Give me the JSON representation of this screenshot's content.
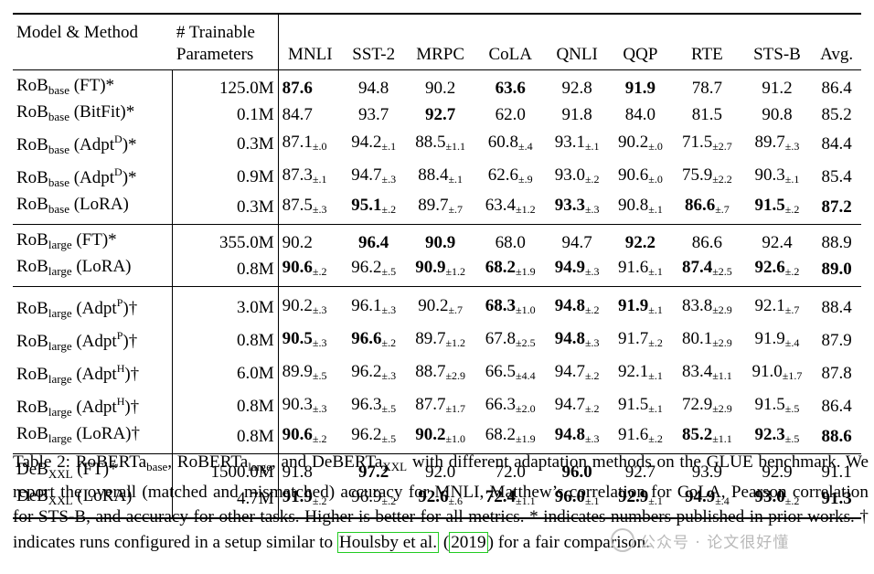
{
  "table": {
    "headers": {
      "model": "Model & Method",
      "params_line1": "# Trainable",
      "params_line2": "Parameters",
      "tasks": [
        "MNLI",
        "SST-2",
        "MRPC",
        "CoLA",
        "QNLI",
        "QQP",
        "RTE",
        "STS-B",
        "Avg."
      ]
    },
    "rows": [
      {
        "base": "RoB",
        "sub": "base",
        "sup": "",
        "method": "(FT)*",
        "params": "125.0M",
        "cells": [
          {
            "v": "87.6",
            "b": true
          },
          {
            "v": "94.8"
          },
          {
            "v": "90.2"
          },
          {
            "v": "63.6",
            "b": true
          },
          {
            "v": "92.8"
          },
          {
            "v": "91.9",
            "b": true
          },
          {
            "v": "78.7"
          },
          {
            "v": "91.2"
          },
          {
            "v": "86.4"
          }
        ]
      },
      {
        "base": "RoB",
        "sub": "base",
        "sup": "",
        "method": "(BitFit)*",
        "params": "0.1M",
        "cells": [
          {
            "v": "84.7"
          },
          {
            "v": "93.7"
          },
          {
            "v": "92.7",
            "b": true
          },
          {
            "v": "62.0"
          },
          {
            "v": "91.8"
          },
          {
            "v": "84.0"
          },
          {
            "v": "81.5"
          },
          {
            "v": "90.8"
          },
          {
            "v": "85.2"
          }
        ]
      },
      {
        "base": "RoB",
        "sub": "base",
        "sup": "D",
        "method": "(Adpt",
        "method_end": ")*",
        "params": "0.3M",
        "cells": [
          {
            "v": "87.1",
            "s": "±.0"
          },
          {
            "v": "94.2",
            "s": "±.1"
          },
          {
            "v": "88.5",
            "s": "±1.1"
          },
          {
            "v": "60.8",
            "s": "±.4"
          },
          {
            "v": "93.1",
            "s": "±.1"
          },
          {
            "v": "90.2",
            "s": "±.0"
          },
          {
            "v": "71.5",
            "s": "±2.7"
          },
          {
            "v": "89.7",
            "s": "±.3"
          },
          {
            "v": "84.4"
          }
        ]
      },
      {
        "base": "RoB",
        "sub": "base",
        "sup": "D",
        "method": "(Adpt",
        "method_end": ")*",
        "params": "0.9M",
        "cells": [
          {
            "v": "87.3",
            "s": "±.1"
          },
          {
            "v": "94.7",
            "s": "±.3"
          },
          {
            "v": "88.4",
            "s": "±.1"
          },
          {
            "v": "62.6",
            "s": "±.9"
          },
          {
            "v": "93.0",
            "s": "±.2"
          },
          {
            "v": "90.6",
            "s": "±.0"
          },
          {
            "v": "75.9",
            "s": "±2.2"
          },
          {
            "v": "90.3",
            "s": "±.1"
          },
          {
            "v": "85.4"
          }
        ]
      },
      {
        "base": "RoB",
        "sub": "base",
        "sup": "",
        "method": "(LoRA)",
        "params": "0.3M",
        "cells": [
          {
            "v": "87.5",
            "s": "±.3"
          },
          {
            "v": "95.1",
            "s": "±.2",
            "b": true
          },
          {
            "v": "89.7",
            "s": "±.7"
          },
          {
            "v": "63.4",
            "s": "±1.2"
          },
          {
            "v": "93.3",
            "s": "±.3",
            "b": true
          },
          {
            "v": "90.8",
            "s": "±.1"
          },
          {
            "v": "86.6",
            "s": "±.7",
            "b": true
          },
          {
            "v": "91.5",
            "s": "±.2",
            "b": true
          },
          {
            "v": "87.2",
            "b": true
          }
        ]
      },
      {
        "base": "RoB",
        "sub": "large",
        "sup": "",
        "method": "(FT)*",
        "params": "355.0M",
        "cells": [
          {
            "v": "90.2"
          },
          {
            "v": "96.4",
            "b": true
          },
          {
            "v": "90.9",
            "b": true
          },
          {
            "v": "68.0"
          },
          {
            "v": "94.7"
          },
          {
            "v": "92.2",
            "b": true
          },
          {
            "v": "86.6"
          },
          {
            "v": "92.4"
          },
          {
            "v": "88.9"
          }
        ]
      },
      {
        "base": "RoB",
        "sub": "large",
        "sup": "",
        "method": "(LoRA)",
        "params": "0.8M",
        "cells": [
          {
            "v": "90.6",
            "s": "±.2",
            "b": true
          },
          {
            "v": "96.2",
            "s": "±.5"
          },
          {
            "v": "90.9",
            "s": "±1.2",
            "b": true
          },
          {
            "v": "68.2",
            "s": "±1.9",
            "b": true
          },
          {
            "v": "94.9",
            "s": "±.3",
            "b": true
          },
          {
            "v": "91.6",
            "s": "±.1"
          },
          {
            "v": "87.4",
            "s": "±2.5",
            "b": true
          },
          {
            "v": "92.6",
            "s": "±.2",
            "b": true
          },
          {
            "v": "89.0",
            "b": true
          }
        ]
      },
      {
        "base": "RoB",
        "sub": "large",
        "sup": "P",
        "method": "(Adpt",
        "method_end": ")†",
        "params": "3.0M",
        "cells": [
          {
            "v": "90.2",
            "s": "±.3"
          },
          {
            "v": "96.1",
            "s": "±.3"
          },
          {
            "v": "90.2",
            "s": "±.7"
          },
          {
            "v": "68.3",
            "s": "±1.0",
            "b": true
          },
          {
            "v": "94.8",
            "s": "±.2",
            "b": true
          },
          {
            "v": "91.9",
            "s": "±.1",
            "b": true
          },
          {
            "v": "83.8",
            "s": "±2.9"
          },
          {
            "v": "92.1",
            "s": "±.7"
          },
          {
            "v": "88.4"
          }
        ]
      },
      {
        "base": "RoB",
        "sub": "large",
        "sup": "P",
        "method": "(Adpt",
        "method_end": ")†",
        "params": "0.8M",
        "cells": [
          {
            "v": "90.5",
            "s": "±.3",
            "b": true
          },
          {
            "v": "96.6",
            "s": "±.2",
            "b": true
          },
          {
            "v": "89.7",
            "s": "±1.2"
          },
          {
            "v": "67.8",
            "s": "±2.5"
          },
          {
            "v": "94.8",
            "s": "±.3",
            "b": true
          },
          {
            "v": "91.7",
            "s": "±.2"
          },
          {
            "v": "80.1",
            "s": "±2.9"
          },
          {
            "v": "91.9",
            "s": "±.4"
          },
          {
            "v": "87.9"
          }
        ]
      },
      {
        "base": "RoB",
        "sub": "large",
        "sup": "H",
        "method": "(Adpt",
        "method_end": ")†",
        "params": "6.0M",
        "cells": [
          {
            "v": "89.9",
            "s": "±.5"
          },
          {
            "v": "96.2",
            "s": "±.3"
          },
          {
            "v": "88.7",
            "s": "±2.9"
          },
          {
            "v": "66.5",
            "s": "±4.4"
          },
          {
            "v": "94.7",
            "s": "±.2"
          },
          {
            "v": "92.1",
            "s": "±.1"
          },
          {
            "v": "83.4",
            "s": "±1.1"
          },
          {
            "v": "91.0",
            "s": "±1.7"
          },
          {
            "v": "87.8"
          }
        ]
      },
      {
        "base": "RoB",
        "sub": "large",
        "sup": "H",
        "method": "(Adpt",
        "method_end": ")†",
        "params": "0.8M",
        "cells": [
          {
            "v": "90.3",
            "s": "±.3"
          },
          {
            "v": "96.3",
            "s": "±.5"
          },
          {
            "v": "87.7",
            "s": "±1.7"
          },
          {
            "v": "66.3",
            "s": "±2.0"
          },
          {
            "v": "94.7",
            "s": "±.2"
          },
          {
            "v": "91.5",
            "s": "±.1"
          },
          {
            "v": "72.9",
            "s": "±2.9"
          },
          {
            "v": "91.5",
            "s": "±.5"
          },
          {
            "v": "86.4"
          }
        ]
      },
      {
        "base": "RoB",
        "sub": "large",
        "sup": "",
        "method": "(LoRA)†",
        "params": "0.8M",
        "cells": [
          {
            "v": "90.6",
            "s": "±.2",
            "b": true
          },
          {
            "v": "96.2",
            "s": "±.5"
          },
          {
            "v": "90.2",
            "s": "±1.0",
            "b": true
          },
          {
            "v": "68.2",
            "s": "±1.9"
          },
          {
            "v": "94.8",
            "s": "±.3",
            "b": true
          },
          {
            "v": "91.6",
            "s": "±.2"
          },
          {
            "v": "85.2",
            "s": "±1.1",
            "b": true
          },
          {
            "v": "92.3",
            "s": "±.5",
            "b": true
          },
          {
            "v": "88.6",
            "b": true
          }
        ]
      },
      {
        "base": "DeB",
        "sub": "XXL",
        "sup": "",
        "method": "(FT)*",
        "params": "1500.0M",
        "cells": [
          {
            "v": "91.8"
          },
          {
            "v": "97.2",
            "b": true
          },
          {
            "v": "92.0"
          },
          {
            "v": "72.0"
          },
          {
            "v": "96.0",
            "b": true
          },
          {
            "v": "92.7"
          },
          {
            "v": "93.9"
          },
          {
            "v": "92.9"
          },
          {
            "v": "91.1"
          }
        ]
      },
      {
        "base": "DeB",
        "sub": "XXL",
        "sup": "",
        "method": "(LoRA)",
        "params": "4.7M",
        "cells": [
          {
            "v": "91.9",
            "s": "±.2",
            "b": true
          },
          {
            "v": "96.9",
            "s": "±.2"
          },
          {
            "v": "92.6",
            "s": "±.6",
            "b": true
          },
          {
            "v": "72.4",
            "s": "±1.1",
            "b": true
          },
          {
            "v": "96.0",
            "s": "±.1",
            "b": true
          },
          {
            "v": "92.9",
            "s": "±.1",
            "b": true
          },
          {
            "v": "94.9",
            "s": "±.4",
            "b": true
          },
          {
            "v": "93.0",
            "s": "±.2",
            "b": true
          },
          {
            "v": "91.3",
            "b": true
          }
        ]
      }
    ],
    "group_starts": [
      0,
      5,
      7,
      12
    ],
    "group_ends": [
      4,
      6,
      11,
      13
    ]
  },
  "caption": {
    "p1": "Table 2: RoBERTa",
    "s1": "base",
    "p2": ", RoBERTa",
    "s2": "large",
    "p3": ", and DeBERTa",
    "s3": "XXL",
    "p4": " with different adaptation methods on the GLUE benchmark. We report the overall (matched and mismatched) accuracy for MNLI, Matthew’s correlation for CoLA, Pearson correlation for STS-B, and accuracy for other tasks. Higher is better for all metrics. * indicates numbers published in prior works. † indicates runs configured in a setup similar to ",
    "cite_author": "Houlsby et al.",
    "cite_open": " (",
    "cite_year": "2019",
    "p5": ") for a fair comparison."
  },
  "watermark": {
    "text": "公众号 · 论文很好懂"
  }
}
